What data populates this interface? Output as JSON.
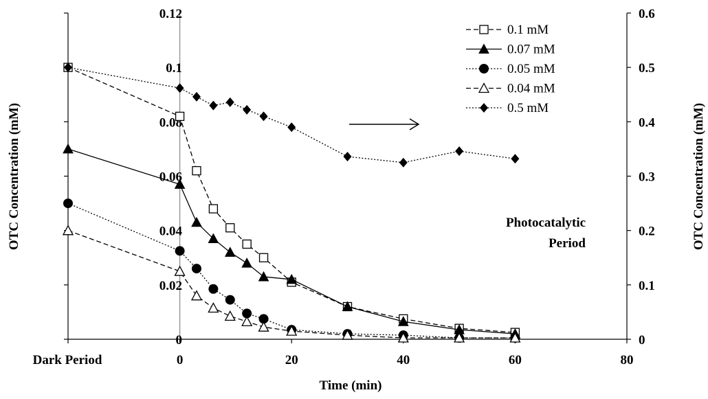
{
  "chart_data": {
    "type": "line",
    "xlabel": "Time (min)",
    "ylabel_left": "OTC Concentration (mM)",
    "ylabel_right": "OTC Concentration (mM)",
    "xlim": [
      -20,
      80
    ],
    "ylim_left": [
      0,
      0.12
    ],
    "ylim_right": [
      0,
      0.6
    ],
    "x_ticks": [
      0,
      20,
      40,
      60,
      80
    ],
    "y_left_ticks": [
      "0",
      "0.02",
      "0.04",
      "0.06",
      "0.08",
      "0.1",
      "0.12"
    ],
    "y_right_ticks": [
      "0",
      "0.1",
      "0.2",
      "0.3",
      "0.4",
      "0.5",
      "0.6"
    ],
    "dark_period_label": "Dark Period",
    "annotation_line1": "Photocatalytic",
    "annotation_line2": "Period",
    "legend_position": "top-right",
    "grid": false,
    "series": [
      {
        "name": "0.1 mM",
        "marker": "open-square",
        "line": "dashed",
        "axis": "left",
        "points": [
          [
            -20,
            0.1
          ],
          [
            0,
            0.082
          ],
          [
            3,
            0.062
          ],
          [
            6,
            0.048
          ],
          [
            9,
            0.041
          ],
          [
            12,
            0.035
          ],
          [
            15,
            0.03
          ],
          [
            20,
            0.021
          ],
          [
            30,
            0.012
          ],
          [
            40,
            0.0075
          ],
          [
            50,
            0.004
          ],
          [
            60,
            0.0025
          ]
        ]
      },
      {
        "name": "0.07 mM",
        "marker": "filled-triangle",
        "line": "solid",
        "axis": "left",
        "points": [
          [
            -20,
            0.07
          ],
          [
            0,
            0.057
          ],
          [
            3,
            0.043
          ],
          [
            6,
            0.037
          ],
          [
            9,
            0.032
          ],
          [
            12,
            0.028
          ],
          [
            15,
            0.023
          ],
          [
            20,
            0.022
          ],
          [
            30,
            0.012
          ],
          [
            40,
            0.0065
          ],
          [
            50,
            0.0035
          ],
          [
            60,
            0.002
          ]
        ]
      },
      {
        "name": "0.05 mM",
        "marker": "filled-circle",
        "line": "dotted",
        "axis": "left",
        "points": [
          [
            -20,
            0.05
          ],
          [
            0,
            0.0325
          ],
          [
            3,
            0.026
          ],
          [
            6,
            0.0185
          ],
          [
            9,
            0.0145
          ],
          [
            12,
            0.0095
          ],
          [
            15,
            0.0075
          ],
          [
            20,
            0.0035
          ],
          [
            30,
            0.002
          ],
          [
            40,
            0.0015
          ],
          [
            50,
            0.0005
          ],
          [
            60,
            0.0005
          ]
        ]
      },
      {
        "name": "0.04 mM",
        "marker": "open-triangle",
        "line": "dashed",
        "axis": "left",
        "points": [
          [
            -20,
            0.04
          ],
          [
            0,
            0.025
          ],
          [
            3,
            0.016
          ],
          [
            6,
            0.0115
          ],
          [
            9,
            0.0085
          ],
          [
            12,
            0.0065
          ],
          [
            15,
            0.0045
          ],
          [
            20,
            0.003
          ],
          [
            30,
            0.0015
          ],
          [
            40,
            0.0005
          ],
          [
            50,
            0.0005
          ],
          [
            60,
            0.0005
          ]
        ]
      },
      {
        "name": "0.5 mM",
        "marker": "filled-diamond",
        "line": "dotted",
        "axis": "right",
        "points": [
          [
            -20,
            0.5
          ],
          [
            0,
            0.462
          ],
          [
            3,
            0.446
          ],
          [
            6,
            0.43
          ],
          [
            9,
            0.436
          ],
          [
            12,
            0.422
          ],
          [
            15,
            0.41
          ],
          [
            20,
            0.39
          ],
          [
            30,
            0.336
          ],
          [
            40,
            0.325
          ],
          [
            50,
            0.346
          ],
          [
            60,
            0.332
          ]
        ]
      }
    ]
  }
}
